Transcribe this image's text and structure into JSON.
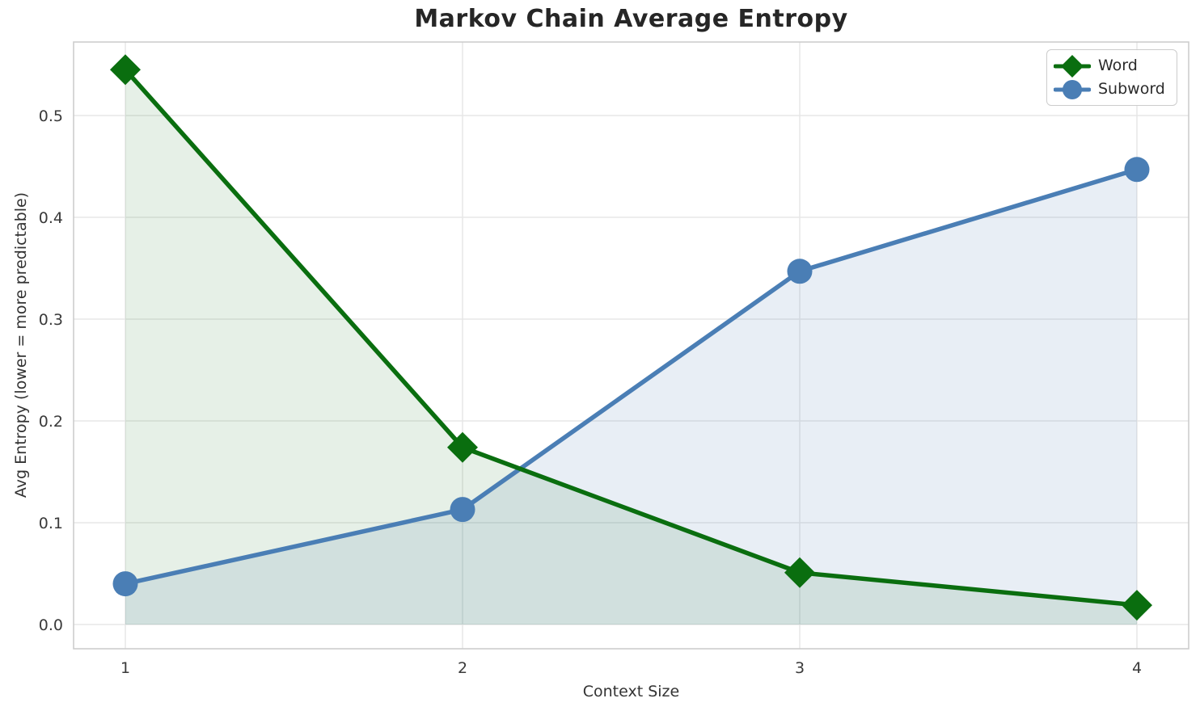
{
  "chart_data": {
    "type": "line",
    "title": "Markov Chain Average Entropy",
    "xlabel": "Context Size",
    "ylabel": "Avg Entropy (lower = more predictable)",
    "x": [
      1,
      2,
      3,
      4
    ],
    "xtick_labels": [
      "1",
      "2",
      "3",
      "4"
    ],
    "yticks": [
      0.0,
      0.1,
      0.2,
      0.3,
      0.4,
      0.5
    ],
    "ytick_labels": [
      "0.0",
      "0.1",
      "0.2",
      "0.3",
      "0.4",
      "0.5"
    ],
    "xlim": [
      0.8465,
      4.1535
    ],
    "ylim": [
      -0.0238,
      0.5722
    ],
    "grid": true,
    "legend_position": "upper right",
    "area_fill_to_zero": true,
    "series": [
      {
        "name": "Subword",
        "marker": "circle",
        "color": "#4a7eb5",
        "fill_color": "rgba(74,126,181,0.13)",
        "values": [
          0.04,
          0.113,
          0.347,
          0.447
        ]
      },
      {
        "name": "Word",
        "marker": "diamond",
        "color": "#0a6e0f",
        "fill_color": "rgba(10,110,15,0.10)",
        "values": [
          0.545,
          0.174,
          0.051,
          0.019
        ]
      }
    ],
    "legend_order": [
      "Word",
      "Subword"
    ],
    "colors": {
      "grid": "#e7e7e7",
      "spine": "#cdcdcd",
      "tick_text": "#3a3a3a"
    }
  }
}
